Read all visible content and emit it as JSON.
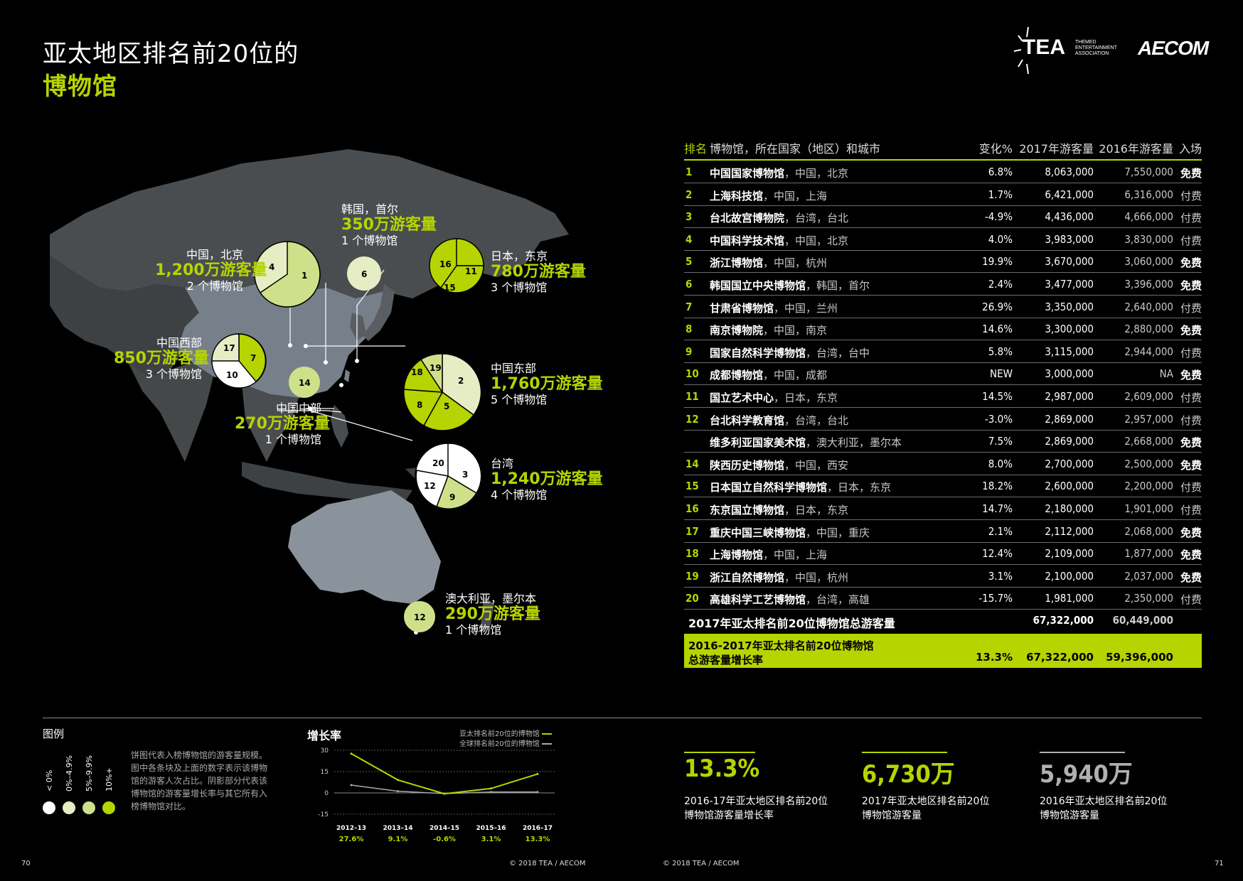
{
  "header": {
    "title_line1": "亚太地区排名前20位的",
    "title_line2": "博物馆",
    "logo_tea": "TEA",
    "logo_tea_sub": "THEMED ENTERTAINMENT ASSOCIATION",
    "logo_aecom": "AECOM"
  },
  "map": {
    "groups": [
      {
        "city": "中国，北京",
        "visitors": "1,200万游客量",
        "count": "2 个博物馆",
        "slices": [
          "1",
          "4"
        ]
      },
      {
        "city": "韩国，首尔",
        "visitors": "350万游客量",
        "count": "1 个博物馆",
        "slices": [
          "6"
        ]
      },
      {
        "city": "日本，东京",
        "visitors": "780万游客量",
        "count": "3 个博物馆",
        "slices": [
          "16",
          "11",
          "15"
        ]
      },
      {
        "city": "中国西部",
        "visitors": "850万游客量",
        "count": "3 个博物馆",
        "slices": [
          "17",
          "7",
          "10"
        ]
      },
      {
        "city": "中国东部",
        "visitors": "1,760万游客量",
        "count": "5 个博物馆",
        "slices": [
          "19",
          "2",
          "5",
          "8",
          "18"
        ]
      },
      {
        "city": "中国中部",
        "visitors": "270万游客量",
        "count": "1 个博物馆",
        "slices": [
          "14"
        ]
      },
      {
        "city": "台湾",
        "visitors": "1,240万游客量",
        "count": "4 个博物馆",
        "slices": [
          "20",
          "3",
          "9",
          "12"
        ]
      },
      {
        "city": "澳大利亚，墨尔本",
        "visitors": "290万游客量",
        "count": "1 个博物馆",
        "slices": [
          "12"
        ]
      }
    ]
  },
  "table": {
    "headers": {
      "rank": "排名",
      "name": "博物馆，所在国家（地区）和城市",
      "change": "变化%",
      "v2017": "2017年游客量",
      "v2016": "2016年游客量",
      "admission": "入场"
    },
    "rows": [
      {
        "rank": "1",
        "name": "中国国家博物馆",
        "loc": "中国，北京",
        "change": "6.8%",
        "v2017": "8,063,000",
        "v2016": "7,550,000",
        "admission": "免费"
      },
      {
        "rank": "2",
        "name": "上海科技馆",
        "loc": "中国，上海",
        "change": "1.7%",
        "v2017": "6,421,000",
        "v2016": "6,316,000",
        "admission": "付费"
      },
      {
        "rank": "3",
        "name": "台北故宫博物院",
        "loc": "台湾，台北",
        "change": "-4.9%",
        "v2017": "4,436,000",
        "v2016": "4,666,000",
        "admission": "付费"
      },
      {
        "rank": "4",
        "name": "中国科学技术馆",
        "loc": "中国，北京",
        "change": "4.0%",
        "v2017": "3,983,000",
        "v2016": "3,830,000",
        "admission": "付费"
      },
      {
        "rank": "5",
        "name": "浙江博物馆",
        "loc": "中国，杭州",
        "change": "19.9%",
        "v2017": "3,670,000",
        "v2016": "3,060,000",
        "admission": "免费"
      },
      {
        "rank": "6",
        "name": "韩国国立中央博物馆",
        "loc": "韩国，首尔",
        "change": "2.4%",
        "v2017": "3,477,000",
        "v2016": "3,396,000",
        "admission": "免费"
      },
      {
        "rank": "7",
        "name": "甘肃省博物馆",
        "loc": "中国，兰州",
        "change": "26.9%",
        "v2017": "3,350,000",
        "v2016": "2,640,000",
        "admission": "付费"
      },
      {
        "rank": "8",
        "name": "南京博物院",
        "loc": "中国，南京",
        "change": "14.6%",
        "v2017": "3,300,000",
        "v2016": "2,880,000",
        "admission": "免费"
      },
      {
        "rank": "9",
        "name": "国家自然科学博物馆",
        "loc": "台湾，台中",
        "change": "5.8%",
        "v2017": "3,115,000",
        "v2016": "2,944,000",
        "admission": "付费"
      },
      {
        "rank": "10",
        "name": "成都博物馆",
        "loc": "中国，成都",
        "change": "NEW",
        "v2017": "3,000,000",
        "v2016": "NA",
        "admission": "免费"
      },
      {
        "rank": "11",
        "name": "国立艺术中心",
        "loc": "日本，东京",
        "change": "14.5%",
        "v2017": "2,987,000",
        "v2016": "2,609,000",
        "admission": "付费"
      },
      {
        "rank": "12",
        "name": "台北科学教育馆",
        "loc": "台湾，台北",
        "change": "-3.0%",
        "v2017": "2,869,000",
        "v2016": "2,957,000",
        "admission": "付费"
      },
      {
        "rank": "",
        "name": "维多利亚国家美术馆",
        "loc": "澳大利亚，墨尔本",
        "change": "7.5%",
        "v2017": "2,869,000",
        "v2016": "2,668,000",
        "admission": "免费"
      },
      {
        "rank": "14",
        "name": "陕西历史博物馆",
        "loc": "中国，西安",
        "change": "8.0%",
        "v2017": "2,700,000",
        "v2016": "2,500,000",
        "admission": "免费"
      },
      {
        "rank": "15",
        "name": "日本国立自然科学博物馆",
        "loc": "日本，东京",
        "change": "18.2%",
        "v2017": "2,600,000",
        "v2016": "2,200,000",
        "admission": "付费"
      },
      {
        "rank": "16",
        "name": "东京国立博物馆",
        "loc": "日本，东京",
        "change": "14.7%",
        "v2017": "2,180,000",
        "v2016": "1,901,000",
        "admission": "付费"
      },
      {
        "rank": "17",
        "name": "重庆中国三峡博物馆",
        "loc": "中国，重庆",
        "change": "2.1%",
        "v2017": "2,112,000",
        "v2016": "2,068,000",
        "admission": "免费"
      },
      {
        "rank": "18",
        "name": "上海博物馆",
        "loc": "中国，上海",
        "change": "12.4%",
        "v2017": "2,109,000",
        "v2016": "1,877,000",
        "admission": "免费"
      },
      {
        "rank": "19",
        "name": "浙江自然博物馆",
        "loc": "中国，杭州",
        "change": "3.1%",
        "v2017": "2,100,000",
        "v2016": "2,037,000",
        "admission": "免费"
      },
      {
        "rank": "20",
        "name": "高雄科学工艺博物馆",
        "loc": "台湾，高雄",
        "change": "-15.7%",
        "v2017": "1,981,000",
        "v2016": "2,350,000",
        "admission": "付费"
      }
    ],
    "total": {
      "label": "2017年亚太排名前20位博物馆总游客量",
      "v2017": "67,322,000",
      "v2016": "60,449,000"
    },
    "growth": {
      "label1": "2016-2017年亚太排名前20位博物馆",
      "label2": "总游客量增长率",
      "change": "13.3%",
      "v2017": "67,322,000",
      "v2016": "59,396,000"
    }
  },
  "legend": {
    "title": "图例",
    "labels": [
      "< 0%",
      "0%–4.9%",
      "5%–9.9%",
      "10%+"
    ],
    "colors": [
      "#ffffff",
      "#e6edc4",
      "#cfe08a",
      "#b6d400"
    ],
    "text": "饼图代表入榜博物馆的游客量规模。图中各条块及上面的数字表示该博物馆的游客人次占比。阴影部分代表该博物馆的游客量增长率与其它所有入榜博物馆对比。"
  },
  "growth_chart": {
    "title": "增长率",
    "legend_ap": "亚太排名前20位的博物馆",
    "legend_global": "全球排名前20位的博物馆",
    "y_ticks": [
      "30",
      "15",
      "0",
      "-15"
    ],
    "chart_data": {
      "type": "line",
      "categories": [
        "2012–13",
        "2013–14",
        "2014–15",
        "2015–16",
        "2016–17"
      ],
      "value_labels": [
        "27.6%",
        "9.1%",
        "-0.6%",
        "3.1%",
        "13.3%"
      ],
      "series": [
        {
          "name": "亚太排名前20位的博物馆",
          "values": [
            27.6,
            9.1,
            -0.6,
            3.1,
            13.3
          ],
          "color": "#b6d400"
        },
        {
          "name": "全球排名前20位的博物馆",
          "values": [
            5.5,
            1.2,
            -0.5,
            0.6,
            0.6
          ],
          "color": "#aaaaaa"
        }
      ],
      "ylim": [
        -15,
        30
      ]
    }
  },
  "stats": [
    {
      "value": "13.3%",
      "desc1": "2016-17年亚太地区排名前20位",
      "desc2": "博物馆游客量增长率",
      "color": "#b6d400"
    },
    {
      "value": "6,730万",
      "desc1": "2017年亚太地区排名前20位",
      "desc2": "博物馆游客量",
      "color": "#b6d400"
    },
    {
      "value": "5,940万",
      "desc1": "2016年亚太地区排名前20位",
      "desc2": "博物馆游客量",
      "color": "#b0b0b0"
    }
  ],
  "footer": {
    "page_left": "70",
    "copyright_left": "© 2018 TEA / AECOM",
    "copyright_right": "© 2018 TEA / AECOM",
    "page_right": "71"
  }
}
